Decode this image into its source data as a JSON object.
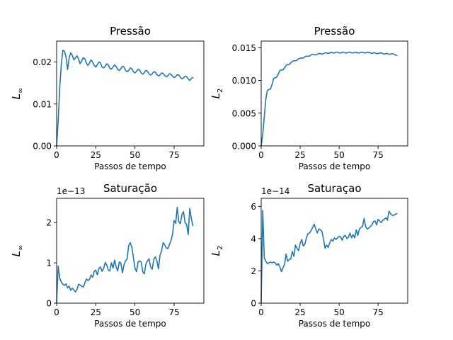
{
  "figure": {
    "background": "#ffffff",
    "line_color": "#1f77b4"
  },
  "chart_data": [
    {
      "type": "line",
      "title": "Pressão",
      "xlabel": "Passos de tempo",
      "ylabel": "L∞",
      "ylabel_base": "L",
      "ylabel_sub": "∞",
      "offset_text": "",
      "xlim": [
        0,
        94
      ],
      "ylim": [
        0,
        0.025
      ],
      "xticks": [
        0,
        25,
        50,
        75
      ],
      "xtick_labels": [
        "0",
        "25",
        "50",
        "75"
      ],
      "yticks": [
        0,
        0.01,
        0.02
      ],
      "ytick_labels": [
        "0.00",
        "0.01",
        "0.02"
      ],
      "series": [
        {
          "x": [
            0,
            1,
            2,
            3,
            4,
            5,
            6,
            7,
            8,
            9,
            10,
            11,
            12,
            13,
            14,
            15,
            16,
            17,
            18,
            19,
            20,
            21,
            22,
            23,
            24,
            25,
            26,
            27,
            28,
            29,
            30,
            31,
            32,
            33,
            34,
            35,
            36,
            37,
            38,
            39,
            40,
            41,
            42,
            43,
            44,
            45,
            46,
            47,
            48,
            49,
            50,
            51,
            52,
            53,
            54,
            55,
            56,
            57,
            58,
            59,
            60,
            61,
            62,
            63,
            64,
            65,
            66,
            67,
            68,
            69,
            70,
            71,
            72,
            73,
            74,
            75,
            76,
            77,
            78,
            79,
            80,
            81,
            82,
            83,
            84,
            85,
            86,
            87
          ],
          "y": [
            0,
            0.006,
            0.014,
            0.0195,
            0.0228,
            0.0226,
            0.0212,
            0.0182,
            0.021,
            0.0222,
            0.0216,
            0.0205,
            0.021,
            0.0215,
            0.0207,
            0.0196,
            0.0203,
            0.021,
            0.0208,
            0.0197,
            0.0192,
            0.0198,
            0.0205,
            0.02,
            0.0192,
            0.0188,
            0.0194,
            0.02,
            0.0198,
            0.0188,
            0.0186,
            0.019,
            0.0196,
            0.0193,
            0.0185,
            0.0183,
            0.0188,
            0.0193,
            0.019,
            0.0182,
            0.018,
            0.0184,
            0.019,
            0.0188,
            0.018,
            0.0177,
            0.018,
            0.0186,
            0.0184,
            0.0177,
            0.0174,
            0.0178,
            0.0183,
            0.0181,
            0.0174,
            0.0171,
            0.0175,
            0.018,
            0.0178,
            0.0172,
            0.0169,
            0.0172,
            0.0177,
            0.0176,
            0.017,
            0.0167,
            0.0169,
            0.0174,
            0.0173,
            0.0168,
            0.0165,
            0.0167,
            0.0172,
            0.0171,
            0.0166,
            0.0163,
            0.0165,
            0.017,
            0.0169,
            0.0164,
            0.016,
            0.0162,
            0.0166,
            0.0165,
            0.016,
            0.0156,
            0.0161,
            0.0163
          ]
        }
      ]
    },
    {
      "type": "line",
      "title": "Pressão",
      "xlabel": "Passos de tempo",
      "ylabel": "L2",
      "ylabel_base": "L",
      "ylabel_sub": "2",
      "offset_text": "",
      "xlim": [
        0,
        94
      ],
      "ylim": [
        0,
        0.016
      ],
      "xticks": [
        0,
        25,
        50,
        75
      ],
      "xtick_labels": [
        "0",
        "25",
        "50",
        "75"
      ],
      "yticks": [
        0,
        0.005,
        0.01,
        0.015
      ],
      "ytick_labels": [
        "0.000",
        "0.005",
        "0.010",
        "0.015"
      ],
      "series": [
        {
          "x": [
            0,
            1,
            2,
            3,
            4,
            5,
            6,
            7,
            8,
            9,
            10,
            11,
            12,
            13,
            14,
            15,
            16,
            17,
            18,
            19,
            20,
            21,
            22,
            23,
            24,
            25,
            26,
            27,
            28,
            29,
            30,
            31,
            32,
            33,
            34,
            35,
            36,
            37,
            38,
            39,
            40,
            41,
            42,
            43,
            44,
            45,
            46,
            47,
            48,
            49,
            50,
            51,
            52,
            53,
            54,
            55,
            56,
            57,
            58,
            59,
            60,
            61,
            62,
            63,
            64,
            65,
            66,
            67,
            68,
            69,
            70,
            71,
            72,
            73,
            74,
            75,
            76,
            77,
            78,
            79,
            80,
            81,
            82,
            83,
            84,
            85,
            86,
            87
          ],
          "y": [
            0,
            0.0018,
            0.0045,
            0.0072,
            0.0085,
            0.0086,
            0.0087,
            0.0094,
            0.0103,
            0.0104,
            0.0105,
            0.011,
            0.0115,
            0.0116,
            0.0116,
            0.0119,
            0.0123,
            0.0124,
            0.0124,
            0.0127,
            0.0129,
            0.013,
            0.013,
            0.0131,
            0.0133,
            0.0134,
            0.0134,
            0.0134,
            0.0136,
            0.0137,
            0.0137,
            0.0137,
            0.0139,
            0.014,
            0.0139,
            0.0139,
            0.014,
            0.0141,
            0.0141,
            0.014,
            0.0141,
            0.0142,
            0.0142,
            0.0141,
            0.0142,
            0.0143,
            0.0142,
            0.0142,
            0.0143,
            0.0143,
            0.0142,
            0.0142,
            0.0143,
            0.0143,
            0.0142,
            0.0142,
            0.0143,
            0.0143,
            0.0142,
            0.0142,
            0.0143,
            0.0143,
            0.0142,
            0.0142,
            0.0143,
            0.0143,
            0.0142,
            0.0142,
            0.0143,
            0.0143,
            0.0142,
            0.0141,
            0.0142,
            0.0142,
            0.0141,
            0.0141,
            0.0142,
            0.0142,
            0.0141,
            0.014,
            0.0141,
            0.0141,
            0.014,
            0.014,
            0.0141,
            0.014,
            0.0139,
            0.0138
          ]
        }
      ]
    },
    {
      "type": "line",
      "title": "Saturação",
      "xlabel": "Passos de tempo",
      "ylabel": "L∞",
      "ylabel_base": "L",
      "ylabel_sub": "∞",
      "offset_text": "1e−13",
      "xlim": [
        0,
        94
      ],
      "ylim": [
        0,
        2.6
      ],
      "xticks": [
        0,
        25,
        50,
        75
      ],
      "xtick_labels": [
        "0",
        "25",
        "50",
        "75"
      ],
      "yticks": [
        0,
        1,
        2
      ],
      "ytick_labels": [
        "0",
        "1",
        "2"
      ],
      "series": [
        {
          "x": [
            0,
            1,
            2,
            3,
            4,
            5,
            6,
            7,
            8,
            9,
            10,
            11,
            12,
            13,
            14,
            15,
            16,
            17,
            18,
            19,
            20,
            21,
            22,
            23,
            24,
            25,
            26,
            27,
            28,
            29,
            30,
            31,
            32,
            33,
            34,
            35,
            36,
            37,
            38,
            39,
            40,
            41,
            42,
            43,
            44,
            45,
            46,
            47,
            48,
            49,
            50,
            51,
            52,
            53,
            54,
            55,
            56,
            57,
            58,
            59,
            60,
            61,
            62,
            63,
            64,
            65,
            66,
            67,
            68,
            69,
            70,
            71,
            72,
            73,
            74,
            75,
            76,
            77,
            78,
            79,
            80,
            81,
            82,
            83,
            84,
            85,
            86,
            87
          ],
          "y": [
            0.02,
            0.92,
            0.62,
            0.52,
            0.47,
            0.44,
            0.48,
            0.38,
            0.42,
            0.32,
            0.37,
            0.33,
            0.28,
            0.34,
            0.47,
            0.45,
            0.42,
            0.4,
            0.5,
            0.6,
            0.56,
            0.59,
            0.7,
            0.64,
            0.79,
            0.82,
            0.7,
            0.86,
            0.9,
            0.79,
            0.86,
            1.01,
            0.95,
            0.82,
            0.8,
            1.0,
            0.87,
            1.07,
            0.9,
            0.8,
            1.02,
            1.0,
            0.75,
            0.95,
            1.05,
            1.1,
            1.43,
            1.5,
            1.39,
            1.14,
            0.87,
            0.78,
            1.02,
            1.05,
            1.02,
            0.78,
            0.73,
            0.97,
            1.05,
            1.1,
            0.9,
            0.84,
            1.08,
            1.15,
            1.05,
            0.85,
            1.18,
            1.3,
            1.5,
            1.45,
            1.37,
            1.35,
            1.45,
            1.55,
            1.7,
            2.05,
            1.98,
            2.38,
            2.02,
            1.97,
            2.2,
            2.27,
            2.0,
            1.95,
            1.7,
            2.35,
            2.1,
            1.92
          ]
        }
      ]
    },
    {
      "type": "line",
      "title": "Saturaçao",
      "xlabel": "Passos de tempo",
      "ylabel": "L2",
      "ylabel_base": "L",
      "ylabel_sub": "2",
      "offset_text": "1e−14",
      "xlim": [
        0,
        94
      ],
      "ylim": [
        0,
        6.5
      ],
      "xticks": [
        0,
        25,
        50,
        75
      ],
      "xtick_labels": [
        "0",
        "25",
        "50",
        "75"
      ],
      "yticks": [
        0,
        2,
        4,
        6
      ],
      "ytick_labels": [
        "0",
        "2",
        "4",
        "6"
      ],
      "series": [
        {
          "x": [
            0,
            1,
            2,
            3,
            4,
            5,
            6,
            7,
            8,
            9,
            10,
            11,
            12,
            13,
            14,
            15,
            16,
            17,
            18,
            19,
            20,
            21,
            22,
            23,
            24,
            25,
            26,
            27,
            28,
            29,
            30,
            31,
            32,
            33,
            34,
            35,
            36,
            37,
            38,
            39,
            40,
            41,
            42,
            43,
            44,
            45,
            46,
            47,
            48,
            49,
            50,
            51,
            52,
            53,
            54,
            55,
            56,
            57,
            58,
            59,
            60,
            61,
            62,
            63,
            64,
            65,
            66,
            67,
            68,
            69,
            70,
            71,
            72,
            73,
            74,
            75,
            76,
            77,
            78,
            79,
            80,
            81,
            82,
            83,
            84,
            85,
            86,
            87
          ],
          "y": [
            0.05,
            5.75,
            2.8,
            2.6,
            2.45,
            2.5,
            2.55,
            2.5,
            2.55,
            2.5,
            2.35,
            2.45,
            2.25,
            1.95,
            2.2,
            2.4,
            3.05,
            2.6,
            2.7,
            2.75,
            3.2,
            2.9,
            3.6,
            3.4,
            3.25,
            3.7,
            3.95,
            3.55,
            3.65,
            4.05,
            4.3,
            4.35,
            4.5,
            4.7,
            4.9,
            4.6,
            4.35,
            4.6,
            4.55,
            4.45,
            3.95,
            3.4,
            3.6,
            3.45,
            3.75,
            3.95,
            3.85,
            4.05,
            3.95,
            4.05,
            4.15,
            4.1,
            3.9,
            4.15,
            4.2,
            4.0,
            4.1,
            4.35,
            4.05,
            4.25,
            4.05,
            4.55,
            4.2,
            4.6,
            4.7,
            4.75,
            5.25,
            4.75,
            4.6,
            4.65,
            4.75,
            4.85,
            5.05,
            5.1,
            4.85,
            5.2,
            5.1,
            5.0,
            5.15,
            5.2,
            5.3,
            5.15,
            5.7,
            5.55,
            5.45,
            5.45,
            5.5,
            5.55
          ]
        }
      ]
    }
  ]
}
